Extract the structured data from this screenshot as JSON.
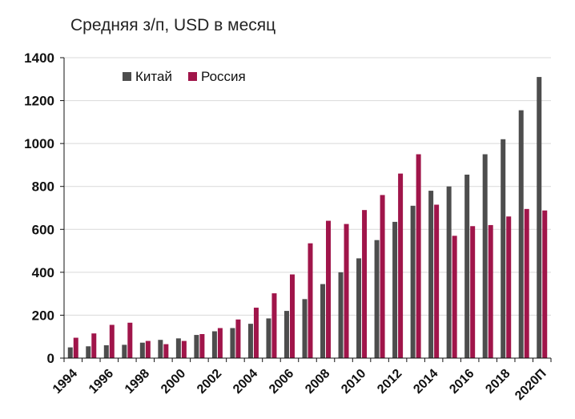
{
  "chart_data": {
    "type": "bar",
    "title": "Средняя з/п, USD в месяц",
    "xlabel": "",
    "ylabel": "",
    "ylim": [
      0,
      1400
    ],
    "yticks": [
      0,
      200,
      400,
      600,
      800,
      1000,
      1200,
      1400
    ],
    "grid": true,
    "legend_position": "top-left",
    "categories": [
      "1994",
      "1995",
      "1996",
      "1997",
      "1998",
      "1999",
      "2000",
      "2001",
      "2002",
      "2003",
      "2004",
      "2005",
      "2006",
      "2007",
      "2008",
      "2009",
      "2010",
      "2011",
      "2012",
      "2013",
      "2014",
      "2015",
      "2016",
      "2017",
      "2018",
      "2019",
      "2020П"
    ],
    "xtick_labels": [
      "1994",
      "",
      "1996",
      "",
      "1998",
      "",
      "2000",
      "",
      "2002",
      "",
      "2004",
      "",
      "2006",
      "",
      "2008",
      "",
      "2010",
      "",
      "2012",
      "",
      "2014",
      "",
      "2016",
      "",
      "2018",
      "",
      "2020П"
    ],
    "series": [
      {
        "name": "Китай",
        "color": "#4d4d4d",
        "values": [
          50,
          55,
          60,
          62,
          72,
          85,
          92,
          108,
          125,
          140,
          160,
          185,
          220,
          275,
          345,
          400,
          465,
          550,
          635,
          710,
          780,
          800,
          855,
          950,
          1020,
          1155,
          1310
        ]
      },
      {
        "name": "Россия",
        "color": "#a0154a",
        "values": [
          95,
          115,
          155,
          165,
          80,
          65,
          80,
          112,
          140,
          180,
          235,
          302,
          390,
          535,
          640,
          625,
          690,
          760,
          860,
          950,
          715,
          570,
          615,
          620,
          660,
          695,
          688
        ]
      }
    ]
  }
}
